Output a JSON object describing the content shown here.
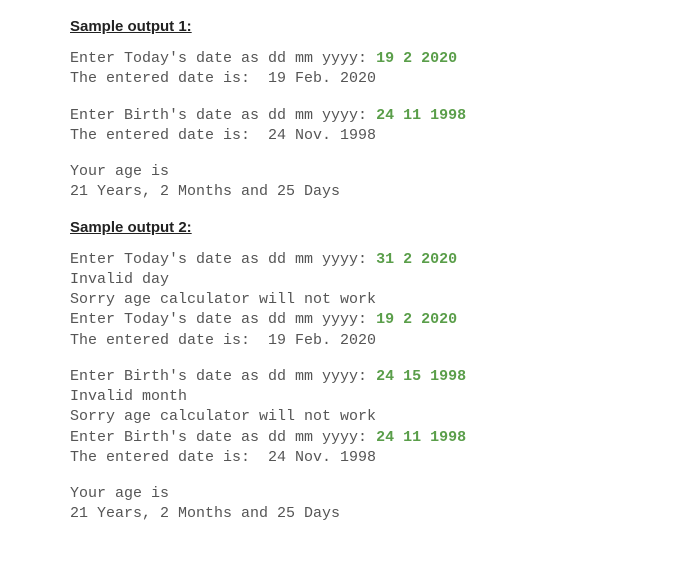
{
  "colors": {
    "text": "#555555",
    "heading": "#222222",
    "input": "#5a9e4a",
    "background": "#ffffff"
  },
  "typography": {
    "heading_font": "Arial",
    "heading_size_pt": 11,
    "heading_weight": "600",
    "mono_font": "Courier New",
    "mono_size_pt": 11
  },
  "sample1": {
    "heading": "Sample output 1:",
    "today_prompt": "Enter Today's date as dd mm yyyy: ",
    "today_input": "19 2 2020",
    "today_confirm": "The entered date is:  19 Feb. 2020",
    "birth_prompt": "Enter Birth's date as dd mm yyyy: ",
    "birth_input": "24 11 1998",
    "birth_confirm": "The entered date is:  24 Nov. 1998",
    "age_label": "Your age is",
    "age_value": "21 Years, 2 Months and 25 Days"
  },
  "sample2": {
    "heading": "Sample output 2:",
    "today_prompt1": "Enter Today's date as dd mm yyyy: ",
    "today_input1": "31 2 2020",
    "invalid_day": "Invalid day",
    "sorry1": "Sorry age calculator will not work",
    "today_prompt2": "Enter Today's date as dd mm yyyy: ",
    "today_input2": "19 2 2020",
    "today_confirm": "The entered date is:  19 Feb. 2020",
    "birth_prompt1": "Enter Birth's date as dd mm yyyy: ",
    "birth_input1": "24 15 1998",
    "invalid_month": "Invalid month",
    "sorry2": "Sorry age calculator will not work",
    "birth_prompt2": "Enter Birth's date as dd mm yyyy: ",
    "birth_input2": "24 11 1998",
    "birth_confirm": "The entered date is:  24 Nov. 1998",
    "age_label": "Your age is",
    "age_value": "21 Years, 2 Months and 25 Days"
  }
}
